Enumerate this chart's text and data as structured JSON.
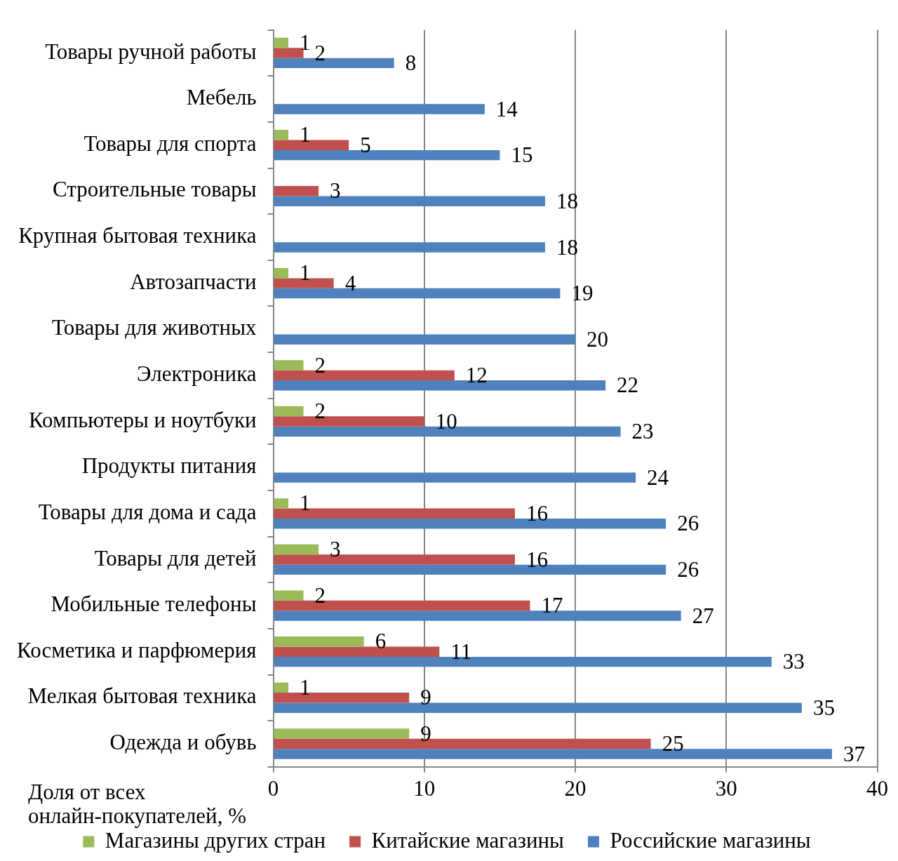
{
  "chart_data": {
    "type": "bar",
    "orientation": "horizontal",
    "categories": [
      "Товары ручной работы",
      "Мебель",
      "Товары для спорта",
      "Строительные товары",
      "Крупная бытовая техника",
      "Автозапчасти",
      "Товары для животных",
      "Электроника",
      "Компьютеры и ноутбуки",
      "Продукты питания",
      "Товары для дома и сада",
      "Товары для детей",
      "Мобильные телефоны",
      "Косметика и парфюмерия",
      "Мелкая бытовая техника",
      "Одежда и обувь"
    ],
    "series": [
      {
        "name": "Магазины других стран",
        "color": "#9bbb59",
        "values": [
          1,
          null,
          1,
          null,
          null,
          1,
          null,
          2,
          2,
          null,
          1,
          3,
          2,
          6,
          1,
          9
        ]
      },
      {
        "name": "Китайские магазины",
        "color": "#c0504d",
        "values": [
          2,
          null,
          5,
          3,
          null,
          4,
          null,
          12,
          10,
          null,
          16,
          16,
          17,
          11,
          9,
          25
        ]
      },
      {
        "name": "Российские магазины",
        "color": "#4f81bd",
        "values": [
          8,
          14,
          15,
          18,
          18,
          19,
          20,
          22,
          23,
          24,
          26,
          26,
          27,
          33,
          35,
          37
        ]
      }
    ],
    "xlabel": "Доля от всех онлайн-покупателей, %",
    "xlim": [
      0,
      40
    ],
    "xticks": [
      0,
      10,
      20,
      30,
      40
    ],
    "grid": "x",
    "legend": "bottom",
    "data_labels": true
  }
}
